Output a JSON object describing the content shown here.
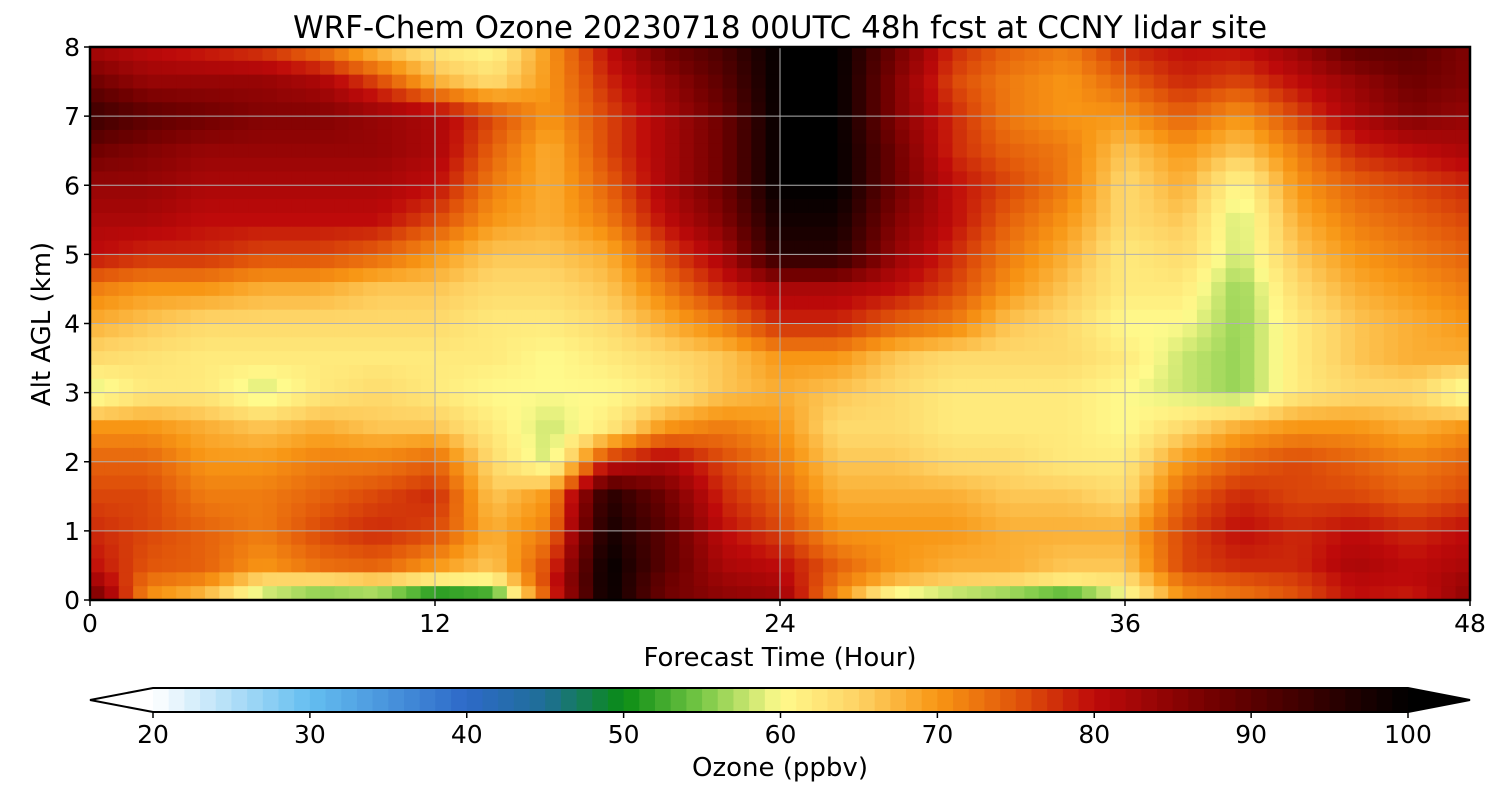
{
  "chart_data": {
    "type": "heatmap",
    "title": "WRF-Chem Ozone  20230718 00UTC 48h fcst at CCNY lidar site",
    "xlabel": "Forecast Time (Hour)",
    "ylabel": "Alt AGL (km)",
    "xlim": [
      0,
      48
    ],
    "ylim": [
      0,
      8
    ],
    "x_ticks": [
      0,
      12,
      24,
      36,
      48
    ],
    "y_ticks": [
      0,
      1,
      2,
      3,
      4,
      5,
      6,
      7,
      8
    ],
    "grid": true,
    "colorbar": {
      "label": "Ozone  (ppbv)",
      "range": [
        20,
        100
      ],
      "ticks": [
        20,
        30,
        40,
        50,
        60,
        70,
        80,
        90,
        100
      ],
      "extend": "both",
      "orientation": "horizontal",
      "placement": "bottom"
    },
    "x_hours": [
      0,
      2,
      4,
      6,
      8,
      10,
      12,
      14,
      16,
      18,
      20,
      22,
      24,
      26,
      28,
      30,
      32,
      34,
      36,
      38,
      40,
      42,
      44,
      46,
      48
    ],
    "altitudes_km": [
      0,
      0.2,
      0.5,
      1,
      1.5,
      2,
      2.5,
      3,
      3.5,
      4,
      4.5,
      5,
      5.5,
      6,
      6.5,
      7,
      7.5,
      8
    ],
    "ozone_ppbv": [
      [
        90,
        70,
        65,
        55,
        52,
        52,
        45,
        48,
        75,
        100,
        88,
        85,
        84,
        70,
        55,
        52,
        50,
        48,
        58,
        70,
        72,
        75,
        80,
        78,
        85
      ],
      [
        85,
        72,
        70,
        62,
        60,
        62,
        58,
        58,
        78,
        100,
        88,
        84,
        82,
        72,
        66,
        64,
        63,
        60,
        62,
        72,
        74,
        76,
        80,
        80,
        84
      ],
      [
        80,
        75,
        74,
        70,
        73,
        74,
        70,
        66,
        76,
        100,
        90,
        82,
        80,
        74,
        70,
        68,
        68,
        66,
        66,
        76,
        78,
        78,
        82,
        80,
        82
      ],
      [
        78,
        76,
        74,
        72,
        76,
        78,
        76,
        68,
        72,
        98,
        90,
        80,
        76,
        70,
        70,
        70,
        68,
        68,
        68,
        76,
        80,
        78,
        80,
        78,
        80
      ],
      [
        76,
        76,
        72,
        72,
        74,
        76,
        78,
        66,
        70,
        96,
        88,
        78,
        74,
        68,
        68,
        68,
        66,
        66,
        64,
        74,
        78,
        76,
        76,
        74,
        76
      ],
      [
        74,
        74,
        70,
        70,
        72,
        72,
        74,
        64,
        58,
        78,
        82,
        76,
        72,
        66,
        66,
        64,
        64,
        62,
        62,
        70,
        74,
        76,
        74,
        72,
        74
      ],
      [
        70,
        70,
        68,
        66,
        68,
        66,
        66,
        62,
        58,
        62,
        70,
        72,
        70,
        64,
        64,
        62,
        62,
        62,
        60,
        64,
        68,
        70,
        70,
        68,
        70
      ],
      [
        58,
        62,
        62,
        58,
        62,
        64,
        62,
        60,
        60,
        60,
        62,
        66,
        68,
        66,
        64,
        62,
        62,
        62,
        60,
        58,
        56,
        62,
        64,
        64,
        58
      ],
      [
        64,
        63,
        62,
        62,
        62,
        62,
        62,
        62,
        60,
        62,
        64,
        66,
        70,
        70,
        66,
        64,
        64,
        64,
        62,
        58,
        56,
        62,
        66,
        68,
        68
      ],
      [
        68,
        66,
        64,
        64,
        64,
        64,
        64,
        62,
        62,
        64,
        68,
        72,
        78,
        78,
        74,
        72,
        66,
        64,
        60,
        60,
        56,
        62,
        66,
        68,
        70
      ],
      [
        72,
        70,
        70,
        68,
        68,
        66,
        66,
        64,
        64,
        66,
        72,
        78,
        82,
        82,
        80,
        76,
        70,
        66,
        62,
        62,
        56,
        64,
        68,
        70,
        72
      ],
      [
        80,
        78,
        78,
        76,
        76,
        74,
        70,
        66,
        66,
        68,
        76,
        82,
        96,
        96,
        84,
        78,
        72,
        68,
        62,
        64,
        58,
        66,
        70,
        72,
        74
      ],
      [
        82,
        82,
        80,
        80,
        80,
        80,
        76,
        70,
        68,
        72,
        80,
        86,
        98,
        98,
        86,
        80,
        74,
        70,
        64,
        66,
        58,
        68,
        72,
        74,
        76
      ],
      [
        84,
        84,
        82,
        82,
        82,
        82,
        80,
        72,
        68,
        74,
        82,
        88,
        100,
        100,
        88,
        80,
        76,
        72,
        64,
        68,
        60,
        70,
        74,
        76,
        78
      ],
      [
        88,
        86,
        84,
        84,
        84,
        84,
        82,
        74,
        68,
        76,
        82,
        88,
        100,
        100,
        88,
        78,
        74,
        72,
        66,
        70,
        66,
        72,
        78,
        80,
        82
      ],
      [
        94,
        90,
        88,
        86,
        86,
        84,
        82,
        76,
        70,
        76,
        82,
        88,
        100,
        100,
        86,
        78,
        72,
        70,
        70,
        74,
        70,
        76,
        82,
        86,
        84
      ],
      [
        88,
        84,
        84,
        84,
        82,
        76,
        68,
        64,
        70,
        78,
        84,
        90,
        100,
        100,
        86,
        76,
        72,
        70,
        74,
        78,
        76,
        80,
        84,
        88,
        86
      ],
      [
        82,
        80,
        78,
        76,
        72,
        66,
        62,
        60,
        70,
        80,
        88,
        92,
        100,
        100,
        88,
        78,
        74,
        72,
        78,
        80,
        80,
        84,
        90,
        90,
        86
      ]
    ]
  }
}
